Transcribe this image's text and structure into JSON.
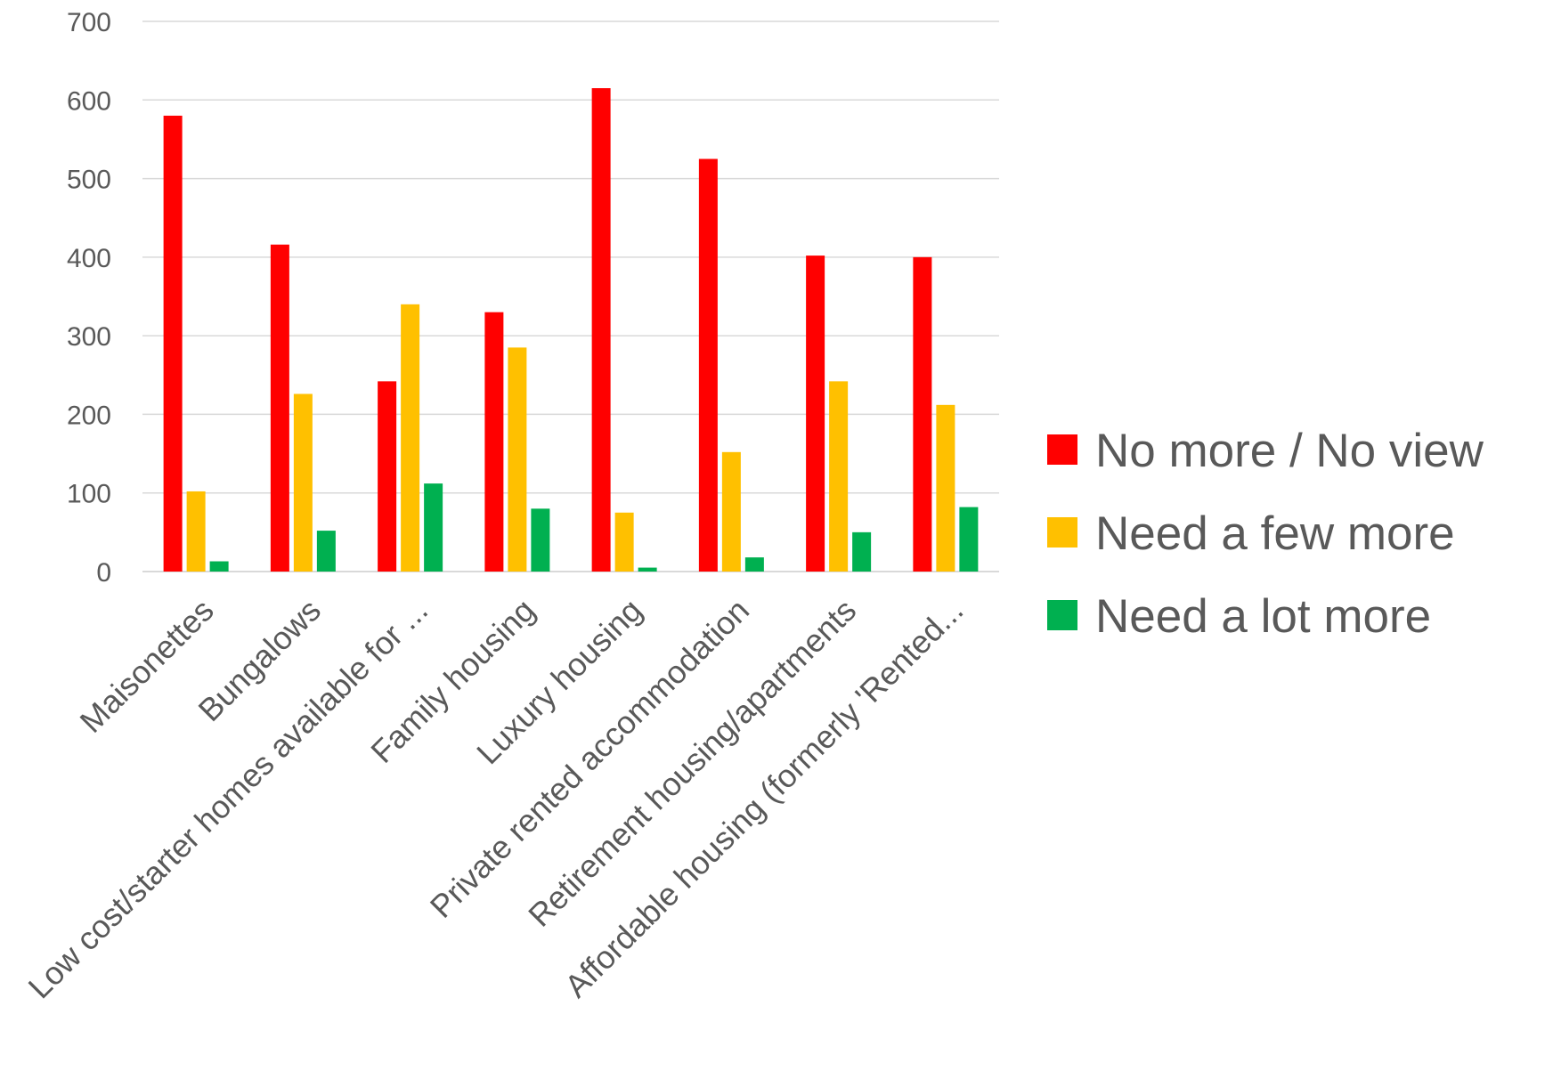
{
  "chart_data": {
    "type": "bar",
    "title": "",
    "xlabel": "",
    "ylabel": "",
    "ylim": [
      0,
      700
    ],
    "yticks": [
      0,
      100,
      200,
      300,
      400,
      500,
      600,
      700
    ],
    "grid": true,
    "legend_position": "right",
    "categories": [
      "Maisonettes",
      "Bungalows",
      "Low cost/starter homes available for ...",
      "Family housing",
      "Luxury housing",
      "Private rented accommodation",
      "Retirement housing/apartments",
      "Affordable housing (formerly 'Rented..."
    ],
    "series": [
      {
        "name": "No more / No view",
        "color": "#ff0000",
        "values": [
          580,
          416,
          242,
          330,
          615,
          525,
          402,
          400
        ]
      },
      {
        "name": "Need a few more",
        "color": "#ffc000",
        "values": [
          102,
          226,
          340,
          285,
          75,
          152,
          242,
          212
        ]
      },
      {
        "name": "Need a lot more",
        "color": "#00b050",
        "values": [
          13,
          52,
          112,
          80,
          5,
          18,
          50,
          82
        ]
      }
    ]
  }
}
